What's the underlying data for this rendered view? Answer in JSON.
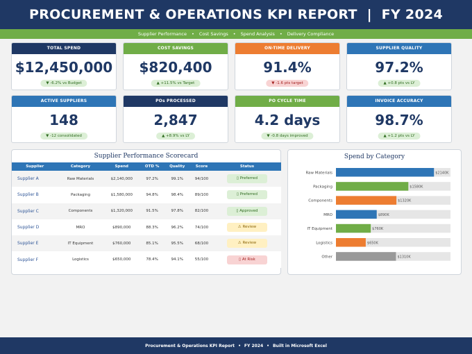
{
  "header": {
    "title": "PROCUREMENT & OPERATIONS KPI REPORT  |  FY 2024"
  },
  "subnav": {
    "items": [
      "Supplier Performance",
      "Cost Savings",
      "Spend Analysis",
      "Delivery Compliance"
    ]
  },
  "kpis": [
    {
      "title": "TOTAL SPEND",
      "value": "$12,450,000",
      "delta": "▼ -6.2% vs Budget",
      "color": "#1f3864",
      "tone": "good"
    },
    {
      "title": "COST SAVINGS",
      "value": "$820,400",
      "delta": "▲ +11.5% vs Target",
      "color": "#70ad47",
      "tone": "good"
    },
    {
      "title": "ON-TIME DELIVERY",
      "value": "91.4%",
      "delta": "▼ -1.6 pts target",
      "color": "#ed7d31",
      "tone": "bad"
    },
    {
      "title": "SUPPLIER QUALITY",
      "value": "97.2%",
      "delta": "▲ +0.8 pts vs LY",
      "color": "#2e75b6",
      "tone": "good"
    },
    {
      "title": "ACTIVE SUPPLIERS",
      "value": "148",
      "delta": "▼ -12 consolidated",
      "color": "#2e75b6",
      "tone": "good"
    },
    {
      "title": "POs PROCESSED",
      "value": "2,847",
      "delta": "▲ +8.9% vs LY",
      "color": "#1f3864",
      "tone": "good"
    },
    {
      "title": "PO CYCLE TIME",
      "value": "4.2 days",
      "delta": "▼ -0.8 days improved",
      "color": "#70ad47",
      "tone": "good"
    },
    {
      "title": "INVOICE ACCURACY",
      "value": "98.7%",
      "delta": "▲ +1.2 pts vs LY",
      "color": "#2e75b6",
      "tone": "good"
    }
  ],
  "scorecard": {
    "title": "Supplier Performance Scorecard",
    "columns": [
      "Supplier",
      "Category",
      "Spend",
      "OTD %",
      "Quality",
      "Score",
      "Status"
    ],
    "rows": [
      {
        "supplier": "Supplier A",
        "category": "Raw Materials",
        "spend": "$2,140,000",
        "otd": "97.2%",
        "quality": "99.1%",
        "score": "94/100",
        "status": "Preferred",
        "status_icon": "▯",
        "tone": "green"
      },
      {
        "supplier": "Supplier B",
        "category": "Packaging",
        "spend": "$1,580,000",
        "otd": "94.8%",
        "quality": "98.4%",
        "score": "89/100",
        "status": "Preferred",
        "status_icon": "▯",
        "tone": "green"
      },
      {
        "supplier": "Supplier C",
        "category": "Components",
        "spend": "$1,320,000",
        "otd": "91.5%",
        "quality": "97.8%",
        "score": "82/100",
        "status": "Approved",
        "status_icon": "▯",
        "tone": "green"
      },
      {
        "supplier": "Supplier D",
        "category": "MRO",
        "spend": "$890,000",
        "otd": "88.3%",
        "quality": "96.2%",
        "score": "74/100",
        "status": "Review",
        "status_icon": "⚠",
        "tone": "yellow"
      },
      {
        "supplier": "Supplier E",
        "category": "IT Equipment",
        "spend": "$760,000",
        "otd": "85.1%",
        "quality": "95.5%",
        "score": "68/100",
        "status": "Review",
        "status_icon": "⚠",
        "tone": "yellow"
      },
      {
        "supplier": "Supplier F",
        "category": "Logistics",
        "spend": "$650,000",
        "otd": "78.4%",
        "quality": "94.1%",
        "score": "55/100",
        "status": "At Risk",
        "status_icon": "▯",
        "tone": "red"
      }
    ]
  },
  "chart_data": {
    "type": "bar",
    "orientation": "horizontal",
    "title": "Spend by Category",
    "categories": [
      "Raw Materials",
      "Packaging",
      "Components",
      "MRO",
      "IT Equipment",
      "Logistics",
      "Other"
    ],
    "values": [
      2140,
      1580,
      1320,
      890,
      760,
      650,
      1310
    ],
    "labels": [
      "$2140K",
      "$1580K",
      "$1320K",
      "$890K",
      "$760K",
      "$650K",
      "$1310K"
    ],
    "colors": [
      "#2e75b6",
      "#70ad47",
      "#ed7d31",
      "#2e75b6",
      "#70ad47",
      "#ed7d31",
      "#999999"
    ],
    "xlim": [
      0,
      2500
    ],
    "grid": false
  },
  "footer": {
    "items": [
      "Procurement & Operations KPI Report",
      "FY 2024",
      "Built in Microsoft Excel"
    ]
  }
}
